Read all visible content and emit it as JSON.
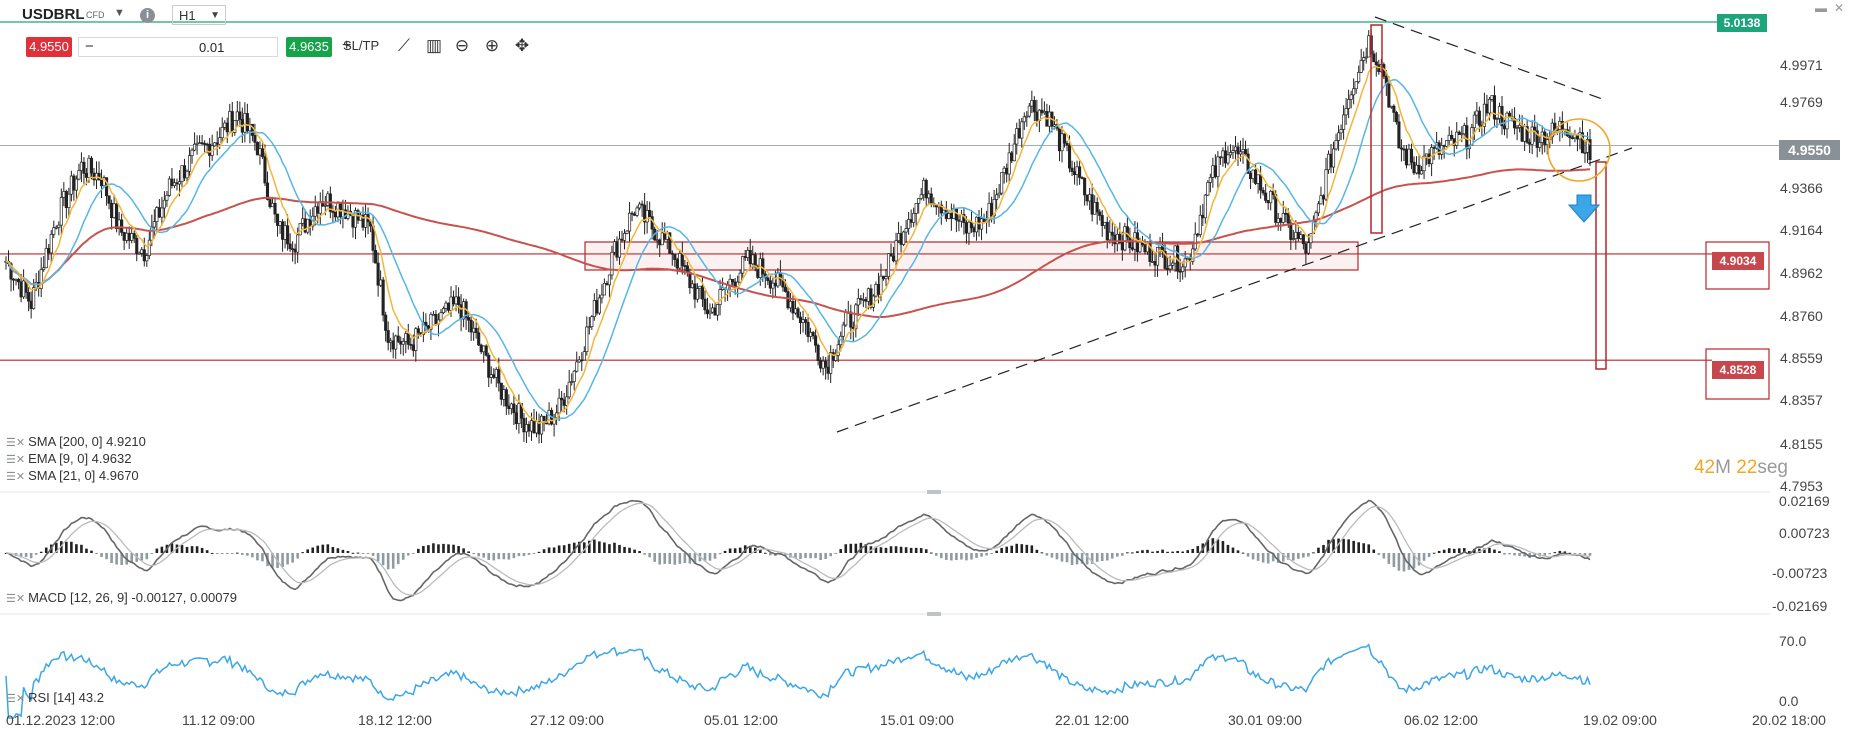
{
  "toolbar": {
    "symbol": "USDBRL",
    "instrument_type": "CFD",
    "timeframe": "H1",
    "sell_price": "4.9550",
    "quantity": "0.01",
    "buy_price": "4.9635",
    "sltp_label": "SL/TP",
    "minus": "−",
    "plus": "+",
    "info": "i"
  },
  "price_axis": {
    "labels": [
      "4.9971",
      "4.9769",
      "4.9366",
      "4.9164",
      "4.8962",
      "4.8760",
      "4.8559",
      "4.8357",
      "4.8155",
      "4.7953"
    ]
  },
  "level_tags": {
    "top_line": "5.0138",
    "current_price": "4.9550",
    "resistance": "4.9034",
    "support": "4.8528"
  },
  "macd_axis": [
    "0.02169",
    "0.00723",
    "-0.00723",
    "-0.02169"
  ],
  "rsi_axis": [
    "70.0",
    "0.0"
  ],
  "time_axis": [
    "01.12.2023 12:00",
    "11.12 09:00",
    "18.12 12:00",
    "27.12 09:00",
    "05.01 12:00",
    "15.01 09:00",
    "22.01 12:00",
    "30.01 09:00",
    "06.02 12:00",
    "19.02 09:00",
    "20.02 18:00"
  ],
  "legend": {
    "sma200": "SMA [200, 0] 4.9210",
    "ema9": "EMA [9, 0] 4.9632",
    "sma21": "SMA [21, 0] 4.9670",
    "macd": "MACD [12, 26, 9] -0.00127, 0.00079",
    "rsi": "RSI [14] 43.2"
  },
  "countdown": {
    "minutes": "42",
    "minutes_unit": "M",
    "seconds": "22",
    "seconds_unit": "seg"
  },
  "colors": {
    "up_candle": "#ffffff",
    "down_candle": "#222222",
    "sma200": "#c8524e",
    "ema9": "#f2b63c",
    "sma21": "#56b6e6",
    "level_line": "#b9262c",
    "top_line": "#1fa37a",
    "macd_hist": "#8f9ba3",
    "rsi_line": "#3ba6e8",
    "tag_red": "#c8474d",
    "tag_green": "#1fa37a",
    "tag_gray": "#8a9097"
  },
  "chart_data": {
    "type": "candlestick",
    "symbol": "USDBRL",
    "timeframe": "H1",
    "x_range": [
      "01.12.2023 12:00",
      "20.02 18:00"
    ],
    "y_range": [
      4.7953,
      5.0138
    ],
    "current_price": 4.955,
    "horizontal_levels": [
      5.0138,
      4.9034,
      4.8528
    ],
    "close_path": [
      [
        0,
        4.9
      ],
      [
        10,
        4.88
      ],
      [
        20,
        4.92
      ],
      [
        30,
        4.945
      ],
      [
        38,
        4.94
      ],
      [
        45,
        4.915
      ],
      [
        55,
        4.905
      ],
      [
        65,
        4.935
      ],
      [
        75,
        4.95
      ],
      [
        85,
        4.96
      ],
      [
        92,
        4.97
      ],
      [
        100,
        4.955
      ],
      [
        108,
        4.915
      ],
      [
        115,
        4.91
      ],
      [
        125,
        4.93
      ],
      [
        135,
        4.925
      ],
      [
        145,
        4.915
      ],
      [
        152,
        4.865
      ],
      [
        160,
        4.86
      ],
      [
        170,
        4.87
      ],
      [
        180,
        4.88
      ],
      [
        188,
        4.86
      ],
      [
        196,
        4.84
      ],
      [
        205,
        4.825
      ],
      [
        212,
        4.82
      ],
      [
        220,
        4.83
      ],
      [
        228,
        4.855
      ],
      [
        235,
        4.88
      ],
      [
        242,
        4.905
      ],
      [
        250,
        4.925
      ],
      [
        258,
        4.915
      ],
      [
        265,
        4.905
      ],
      [
        272,
        4.89
      ],
      [
        280,
        4.875
      ],
      [
        288,
        4.89
      ],
      [
        295,
        4.9
      ],
      [
        302,
        4.895
      ],
      [
        310,
        4.885
      ],
      [
        318,
        4.87
      ],
      [
        326,
        4.85
      ],
      [
        334,
        4.87
      ],
      [
        342,
        4.88
      ],
      [
        350,
        4.895
      ],
      [
        358,
        4.92
      ],
      [
        366,
        4.935
      ],
      [
        374,
        4.925
      ],
      [
        382,
        4.915
      ],
      [
        390,
        4.92
      ],
      [
        398,
        4.945
      ],
      [
        406,
        4.975
      ],
      [
        414,
        4.97
      ],
      [
        422,
        4.95
      ],
      [
        430,
        4.93
      ],
      [
        438,
        4.915
      ],
      [
        446,
        4.91
      ],
      [
        454,
        4.905
      ],
      [
        462,
        4.902
      ],
      [
        470,
        4.9
      ],
      [
        478,
        4.935
      ],
      [
        486,
        4.955
      ],
      [
        494,
        4.945
      ],
      [
        502,
        4.93
      ],
      [
        510,
        4.915
      ],
      [
        518,
        4.905
      ],
      [
        526,
        4.945
      ],
      [
        534,
        4.98
      ],
      [
        542,
        5.005
      ],
      [
        548,
        4.99
      ],
      [
        554,
        4.955
      ],
      [
        560,
        4.945
      ],
      [
        566,
        4.95
      ],
      [
        574,
        4.955
      ],
      [
        582,
        4.96
      ],
      [
        590,
        4.975
      ],
      [
        598,
        4.965
      ],
      [
        606,
        4.96
      ],
      [
        614,
        4.96
      ],
      [
        620,
        4.965
      ],
      [
        626,
        4.96
      ],
      [
        630,
        4.95
      ]
    ]
  }
}
